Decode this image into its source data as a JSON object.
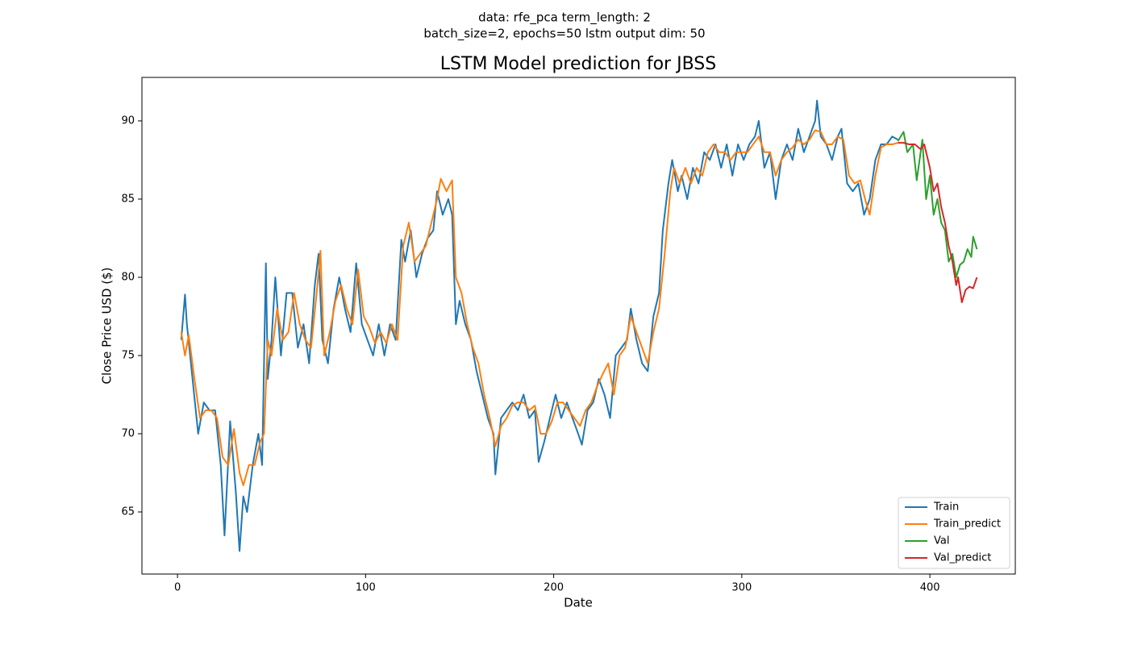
{
  "chart_data": {
    "type": "line",
    "suptitle": [
      "data: rfe_pca term_length: 2",
      "batch_size=2, epochs=50 lstm output dim: 50"
    ],
    "title": "LSTM Model prediction for JBSS",
    "xlabel": "Date",
    "ylabel": "Close Price USD ($)",
    "xlim": [
      -18.9,
      445.4
    ],
    "ylim": [
      61.03,
      92.78
    ],
    "xticks": [
      0,
      100,
      200,
      300,
      400
    ],
    "yticks": [
      65,
      70,
      75,
      80,
      85,
      90
    ],
    "grid": false,
    "legend": "lower right",
    "series": [
      {
        "name": "Train",
        "color": "#1f77b4",
        "x": [
          2,
          4,
          5,
          8,
          11,
          14,
          17,
          20,
          23,
          25,
          28,
          31,
          33,
          35,
          37,
          40,
          43,
          45,
          47,
          48,
          50,
          52,
          55,
          58,
          61,
          64,
          67,
          70,
          73,
          75,
          77,
          80,
          83,
          86,
          89,
          92,
          95,
          98,
          101,
          104,
          107,
          110,
          113,
          116,
          119,
          121,
          124,
          127,
          130,
          133,
          136,
          138,
          141,
          144,
          146,
          148,
          150,
          153,
          156,
          159,
          162,
          165,
          168,
          169,
          172,
          175,
          178,
          181,
          184,
          187,
          190,
          192,
          195,
          198,
          201,
          204,
          207,
          210,
          213,
          215,
          218,
          221,
          224,
          227,
          230,
          233,
          236,
          239,
          241,
          244,
          247,
          250,
          253,
          256,
          258,
          261,
          263,
          266,
          268,
          271,
          274,
          277,
          280,
          283,
          286,
          289,
          292,
          295,
          298,
          301,
          304,
          307,
          309,
          312,
          315,
          318,
          321,
          324,
          327,
          330,
          333,
          336,
          339,
          340,
          342,
          345,
          348,
          351,
          353,
          356,
          359,
          362,
          365,
          368,
          371,
          374,
          377,
          380,
          383
        ],
        "values": [
          76,
          78.9,
          77,
          73.5,
          70,
          72,
          71.5,
          71.5,
          68,
          63.5,
          70.8,
          66.3,
          62.5,
          66,
          65,
          68,
          70,
          68,
          80.9,
          73.5,
          76,
          80,
          75,
          79,
          79,
          75.5,
          77,
          74.5,
          79.5,
          81.5,
          76,
          74.5,
          78,
          80,
          78,
          76.5,
          80.9,
          77,
          76,
          75,
          77,
          75,
          77,
          76,
          82.4,
          81,
          83,
          80,
          81.5,
          82.5,
          83,
          85.5,
          84,
          85,
          84,
          77,
          78.5,
          77,
          76,
          74,
          72.5,
          71,
          70,
          67.4,
          71,
          71.5,
          72,
          71.5,
          72.5,
          71,
          71.5,
          68.2,
          69.5,
          71,
          72.5,
          71,
          72,
          71,
          70,
          69.3,
          71.5,
          72,
          73.5,
          72.5,
          71,
          75,
          75.5,
          76,
          78,
          76,
          74.5,
          74,
          77.5,
          79,
          83,
          86,
          87.5,
          85.5,
          86.5,
          85,
          87,
          86,
          88,
          87.5,
          88.5,
          87,
          88.5,
          86.5,
          88.5,
          87.5,
          88.5,
          89,
          90,
          87,
          88,
          85,
          87.5,
          88.5,
          87.5,
          89.5,
          88,
          89,
          90,
          91.3,
          89,
          88.5,
          87.5,
          89,
          89.5,
          86,
          85.5,
          86,
          84,
          85,
          87.5,
          88.5,
          88.5,
          89,
          88.8
        ]
      },
      {
        "name": "Train_predict",
        "color": "#ff7f0e",
        "x": [
          2,
          4,
          6,
          9,
          12,
          15,
          18,
          21,
          24,
          27,
          30,
          33,
          35,
          38,
          41,
          44,
          46,
          48,
          50,
          53,
          56,
          59,
          62,
          65,
          68,
          71,
          74,
          76,
          78,
          81,
          84,
          87,
          90,
          93,
          96,
          99,
          102,
          105,
          108,
          111,
          114,
          117,
          120,
          123,
          126,
          129,
          132,
          135,
          138,
          140,
          143,
          146,
          148,
          151,
          154,
          157,
          160,
          163,
          166,
          169,
          172,
          175,
          178,
          181,
          184,
          187,
          190,
          193,
          196,
          199,
          202,
          205,
          208,
          211,
          214,
          217,
          220,
          223,
          226,
          229,
          232,
          235,
          238,
          241,
          244,
          247,
          250,
          253,
          256,
          259,
          262,
          264,
          267,
          270,
          273,
          276,
          279,
          282,
          285,
          288,
          291,
          294,
          297,
          300,
          303,
          306,
          309,
          312,
          315,
          318,
          321,
          324,
          327,
          330,
          333,
          336,
          339,
          342,
          345,
          348,
          351,
          354,
          357,
          360,
          363,
          366,
          368,
          371,
          374,
          377,
          380,
          383
        ],
        "values": [
          76.5,
          75,
          76.3,
          73.5,
          71,
          71.5,
          71.5,
          71,
          68.5,
          68,
          70.3,
          67.5,
          66.7,
          68,
          68,
          69.5,
          70,
          76,
          75,
          78,
          76,
          76.5,
          79,
          77,
          76,
          75.5,
          79,
          81.7,
          75,
          76.5,
          78.5,
          79.5,
          78,
          77,
          80.5,
          77.5,
          76.8,
          75.8,
          76.5,
          75.8,
          77,
          76,
          82,
          83.5,
          81,
          81.5,
          82,
          83.5,
          85,
          86.3,
          85.5,
          86.2,
          80,
          79,
          77,
          75.5,
          74.5,
          72.5,
          71,
          69.2,
          70.5,
          71,
          71.8,
          72,
          72,
          71.5,
          71.8,
          70,
          70,
          70.8,
          72,
          72,
          71.5,
          71,
          70.5,
          71.5,
          72,
          73,
          73.8,
          74.5,
          72.5,
          75,
          75.5,
          77.5,
          76.5,
          75.5,
          74.5,
          76.5,
          78,
          81.5,
          85.5,
          87,
          86,
          87,
          86,
          87,
          86.5,
          88,
          88.5,
          88,
          88,
          87.5,
          88,
          88,
          88,
          88.5,
          89,
          88,
          88,
          86.5,
          87.5,
          88,
          88.3,
          88.8,
          88.5,
          88.8,
          89.4,
          89.3,
          88.5,
          88.5,
          89,
          88.8,
          86.5,
          86,
          86.2,
          84.8,
          84,
          86.5,
          88.3,
          88.5,
          88.5,
          88.6
        ]
      },
      {
        "name": "Val",
        "color": "#2ca02c",
        "x": [
          383,
          386,
          388,
          391,
          393,
          396,
          398,
          400,
          402,
          404,
          406,
          408,
          410,
          412,
          414,
          416,
          418,
          420,
          422,
          423,
          425
        ],
        "values": [
          88.7,
          89.3,
          88,
          88.5,
          86.2,
          88.8,
          85,
          86.5,
          84,
          85,
          83.5,
          83,
          81,
          81.5,
          80,
          80.8,
          81,
          81.8,
          81.3,
          82.6,
          81.8
        ]
      },
      {
        "name": "Val_predict",
        "color": "#d62728",
        "x": [
          383,
          386,
          389,
          392,
          395,
          397,
          400,
          402,
          404,
          406,
          408,
          410,
          412,
          414,
          415,
          417,
          419,
          421,
          423,
          425
        ],
        "values": [
          88.6,
          88.6,
          88.5,
          88.5,
          88.2,
          88.5,
          87,
          85.5,
          86,
          84.5,
          83.5,
          82,
          81,
          79.5,
          80,
          78.4,
          79.2,
          79.4,
          79.3,
          80
        ]
      }
    ]
  }
}
